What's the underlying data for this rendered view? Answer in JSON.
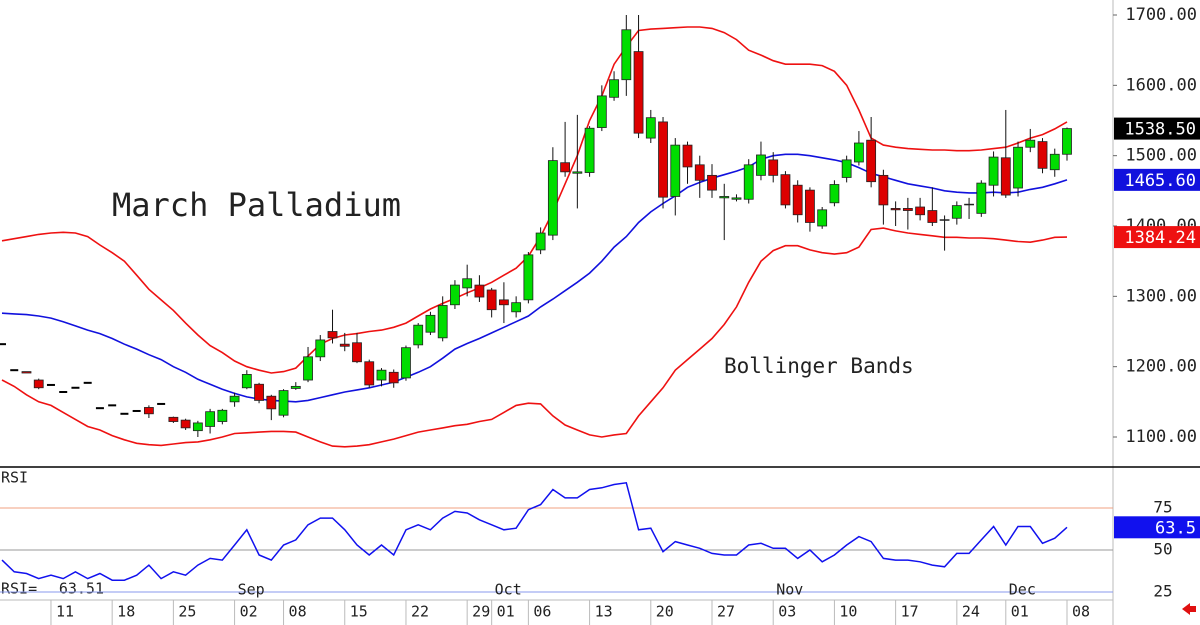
{
  "chart_data": [
    {
      "type": "candlestick",
      "title": "March Palladium",
      "annotation": "Bollinger Bands",
      "open": [
        1232,
        1195,
        1193,
        1181,
        1174,
        1164,
        1170,
        1177,
        1141,
        1145,
        1133,
        1137,
        1142,
        1147,
        1128,
        1124,
        1109,
        1115,
        1122,
        1150,
        1170,
        1175,
        1158,
        1131,
        1169,
        1181,
        1214,
        1250,
        1232,
        1234,
        1207,
        1181,
        1192,
        1184,
        1231,
        1249,
        1241,
        1288,
        1312,
        1316,
        1309,
        1295,
        1278,
        1295,
        1366,
        1387,
        1490,
        1475,
        1476,
        1540,
        1583,
        1608,
        1648,
        1525,
        1548,
        1442,
        1515,
        1487,
        1472,
        1440,
        1438,
        1438,
        1472,
        1494,
        1473,
        1458,
        1451,
        1400,
        1433,
        1469,
        1491,
        1522,
        1472,
        1425,
        1425,
        1427,
        1422,
        1409,
        1411,
        1431,
        1418,
        1458,
        1497,
        1454,
        1512,
        1520,
        1480,
        1502
      ],
      "high": [
        1232,
        1195,
        1193,
        1183,
        1174,
        1164,
        1170,
        1177,
        1141,
        1145,
        1133,
        1137,
        1145,
        1147,
        1129,
        1126,
        1123,
        1140,
        1140,
        1163,
        1195,
        1177,
        1160,
        1168,
        1178,
        1228,
        1245,
        1281,
        1248,
        1248,
        1210,
        1198,
        1196,
        1230,
        1262,
        1278,
        1300,
        1323,
        1345,
        1330,
        1312,
        1320,
        1300,
        1363,
        1398,
        1512,
        1548,
        1558,
        1542,
        1600,
        1620,
        1700,
        1700,
        1565,
        1555,
        1525,
        1520,
        1500,
        1488,
        1460,
        1445,
        1495,
        1520,
        1505,
        1478,
        1465,
        1455,
        1427,
        1465,
        1500,
        1535,
        1555,
        1480,
        1435,
        1440,
        1440,
        1455,
        1415,
        1435,
        1440,
        1465,
        1506,
        1565,
        1520,
        1538,
        1525,
        1510,
        1540
      ],
      "low": [
        1232,
        1195,
        1191,
        1168,
        1174,
        1164,
        1170,
        1177,
        1141,
        1145,
        1133,
        1137,
        1127,
        1147,
        1120,
        1110,
        1100,
        1105,
        1118,
        1143,
        1168,
        1148,
        1124,
        1128,
        1167,
        1178,
        1208,
        1233,
        1222,
        1205,
        1170,
        1172,
        1170,
        1180,
        1226,
        1245,
        1236,
        1282,
        1300,
        1292,
        1270,
        1262,
        1270,
        1290,
        1360,
        1380,
        1470,
        1425,
        1470,
        1535,
        1578,
        1585,
        1525,
        1518,
        1425,
        1415,
        1460,
        1440,
        1440,
        1380,
        1435,
        1432,
        1465,
        1462,
        1425,
        1405,
        1392,
        1396,
        1428,
        1462,
        1486,
        1455,
        1402,
        1400,
        1395,
        1408,
        1400,
        1365,
        1402,
        1410,
        1413,
        1442,
        1440,
        1442,
        1505,
        1475,
        1470,
        1493
      ],
      "close": [
        1232,
        1195,
        1191,
        1170,
        1174,
        1164,
        1170,
        1177,
        1141,
        1145,
        1133,
        1137,
        1133,
        1147,
        1122,
        1113,
        1120,
        1136,
        1138,
        1158,
        1189,
        1152,
        1140,
        1166,
        1172,
        1214,
        1238,
        1241,
        1229,
        1207,
        1174,
        1195,
        1177,
        1227,
        1259,
        1273,
        1287,
        1316,
        1325,
        1299,
        1281,
        1288,
        1291,
        1359,
        1390,
        1493,
        1477,
        1477,
        1539,
        1585,
        1608,
        1679,
        1532,
        1554,
        1441,
        1515,
        1484,
        1465,
        1451,
        1442,
        1440,
        1487,
        1501,
        1472,
        1430,
        1416,
        1405,
        1423,
        1459,
        1494,
        1518,
        1463,
        1430,
        1423,
        1422,
        1416,
        1405,
        1408,
        1429,
        1430,
        1461,
        1498,
        1444,
        1512,
        1522,
        1482,
        1502,
        1538.5
      ],
      "close_label": "1538.50",
      "up_color": "#00dd00",
      "down_color": "#dd0000",
      "bands": [
        {
          "color": "#ee1111",
          "values": [
            1379,
            1382,
            1385,
            1388,
            1390,
            1391,
            1390,
            1385,
            1373,
            1362,
            1350,
            1330,
            1310,
            1295,
            1280,
            1262,
            1245,
            1230,
            1220,
            1208,
            1200,
            1195,
            1191,
            1193,
            1198,
            1215,
            1232,
            1240,
            1245,
            1247,
            1250,
            1252,
            1256,
            1262,
            1272,
            1282,
            1290,
            1297,
            1305,
            1312,
            1320,
            1330,
            1340,
            1357,
            1385,
            1420,
            1460,
            1500,
            1550,
            1585,
            1630,
            1655,
            1678,
            1680,
            1681,
            1682,
            1683,
            1683,
            1681,
            1675,
            1665,
            1650,
            1643,
            1635,
            1630,
            1630,
            1630,
            1628,
            1620,
            1600,
            1565,
            1525,
            1515,
            1512,
            1510,
            1509,
            1508,
            1508,
            1507,
            1507,
            1508,
            1510,
            1512,
            1518,
            1525,
            1530,
            1538,
            1548
          ]
        },
        {
          "color": "#1111dd",
          "value_label": "1465.60",
          "values": [
            1276,
            1275,
            1274,
            1272,
            1269,
            1264,
            1258,
            1252,
            1247,
            1240,
            1232,
            1225,
            1217,
            1210,
            1200,
            1192,
            1182,
            1175,
            1168,
            1162,
            1157,
            1154,
            1152,
            1151,
            1150,
            1152,
            1156,
            1160,
            1164,
            1167,
            1170,
            1174,
            1178,
            1185,
            1192,
            1200,
            1212,
            1225,
            1233,
            1240,
            1248,
            1256,
            1264,
            1272,
            1285,
            1296,
            1308,
            1320,
            1333,
            1350,
            1370,
            1385,
            1405,
            1420,
            1432,
            1443,
            1455,
            1462,
            1468,
            1473,
            1478,
            1484,
            1495,
            1500,
            1502,
            1502,
            1500,
            1497,
            1494,
            1490,
            1483,
            1475,
            1470,
            1465,
            1460,
            1457,
            1454,
            1450,
            1448,
            1447,
            1447,
            1448,
            1447,
            1448,
            1452,
            1455,
            1460,
            1465.6
          ]
        },
        {
          "color": "#ee1111",
          "value_label": "1384.24",
          "values": [
            1181,
            1172,
            1160,
            1150,
            1145,
            1135,
            1125,
            1115,
            1110,
            1102,
            1096,
            1091,
            1089,
            1088,
            1090,
            1092,
            1093,
            1096,
            1100,
            1105,
            1106,
            1107,
            1108,
            1108,
            1107,
            1100,
            1093,
            1087,
            1086,
            1087,
            1089,
            1093,
            1097,
            1102,
            1107,
            1110,
            1113,
            1116,
            1118,
            1122,
            1125,
            1135,
            1145,
            1148,
            1147,
            1130,
            1117,
            1110,
            1103,
            1100,
            1103,
            1105,
            1130,
            1150,
            1170,
            1195,
            1210,
            1225,
            1240,
            1260,
            1285,
            1320,
            1350,
            1365,
            1372,
            1372,
            1366,
            1362,
            1360,
            1362,
            1370,
            1395,
            1397,
            1393,
            1390,
            1388,
            1386,
            1384,
            1384,
            1383,
            1383,
            1382,
            1380,
            1378,
            1377,
            1380,
            1384,
            1384.24
          ]
        }
      ],
      "ylim": [
        1057.35,
        1721.33
      ],
      "yticks": [
        {
          "value": 1700,
          "label": "1700.00"
        },
        {
          "value": 1600,
          "label": "1600.00"
        },
        {
          "value": 1500,
          "label": "1500.00"
        },
        {
          "value": 1400,
          "label": "1400.00"
        },
        {
          "value": 1300,
          "label": "1300.00"
        },
        {
          "value": 1200,
          "label": "1200.00"
        },
        {
          "value": 1100,
          "label": "1100.00"
        }
      ]
    },
    {
      "type": "line",
      "title": "RSI",
      "color": "#1111ee",
      "categories": [
        null,
        null,
        null,
        null,
        "11",
        null,
        null,
        null,
        null,
        "18",
        null,
        null,
        null,
        null,
        "25",
        null,
        null,
        null,
        null,
        "02",
        null,
        null,
        null,
        "08",
        null,
        null,
        null,
        null,
        "15",
        null,
        null,
        null,
        null,
        "22",
        null,
        null,
        null,
        null,
        "29",
        null,
        "01",
        null,
        null,
        "06",
        null,
        null,
        null,
        null,
        "13",
        null,
        null,
        null,
        null,
        "20",
        null,
        null,
        null,
        null,
        "27",
        null,
        null,
        null,
        null,
        "03",
        null,
        null,
        null,
        null,
        "10",
        null,
        null,
        null,
        null,
        "17",
        null,
        null,
        null,
        null,
        "24",
        null,
        null,
        null,
        "01",
        null,
        null,
        null,
        null,
        "08"
      ],
      "months": [
        null,
        null,
        null,
        null,
        null,
        null,
        null,
        null,
        null,
        null,
        null,
        null,
        null,
        null,
        null,
        null,
        null,
        null,
        null,
        "Sep",
        null,
        null,
        null,
        null,
        null,
        null,
        null,
        null,
        null,
        null,
        null,
        null,
        null,
        null,
        null,
        null,
        null,
        null,
        null,
        null,
        "Oct",
        null,
        null,
        null,
        null,
        null,
        null,
        null,
        null,
        null,
        null,
        null,
        null,
        null,
        null,
        null,
        null,
        null,
        null,
        null,
        null,
        null,
        null,
        "Nov",
        null,
        null,
        null,
        null,
        null,
        null,
        null,
        null,
        null,
        null,
        null,
        null,
        null,
        null,
        null,
        null,
        null,
        null,
        "Dec",
        null,
        null,
        null,
        null,
        null
      ],
      "values": [
        44,
        37,
        36,
        33,
        35,
        33,
        37,
        33,
        36,
        32,
        32,
        35,
        41,
        33,
        37,
        35,
        41,
        45,
        44,
        53,
        62,
        47,
        44,
        53,
        56,
        65,
        69,
        69,
        62,
        53,
        47,
        53,
        47,
        62,
        65,
        62,
        69,
        73,
        72,
        68,
        65,
        62,
        63,
        74,
        77,
        86,
        81,
        81,
        86,
        87,
        89,
        90,
        62,
        63,
        49,
        55,
        53,
        51,
        48,
        47,
        47,
        53,
        54,
        51,
        51,
        45,
        50,
        43,
        47,
        53,
        58,
        55,
        45,
        44,
        44,
        43,
        41,
        40,
        48,
        48,
        56,
        64,
        53,
        64,
        64,
        54,
        57,
        63.51
      ],
      "value_label": "63.5",
      "readout_label": "RSI=",
      "readout_value": "63.51",
      "ylim": [
        20.24,
        99.4
      ],
      "yticks": [
        75,
        50,
        25
      ],
      "tick_colors": [
        "#f0a080",
        "#999999",
        "#8899ee"
      ]
    }
  ]
}
